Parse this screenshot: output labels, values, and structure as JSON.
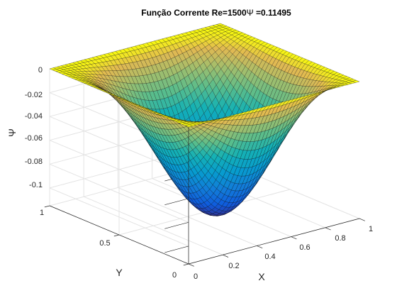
{
  "chart_data": {
    "type": "surface",
    "title": "Função Corrente Re=1500",
    "title_symbol": "Ψ",
    "title_value": " =0.11495",
    "xlabel": "X",
    "ylabel": "Y",
    "zlabel": "Ψ",
    "xlim": [
      0,
      1
    ],
    "ylim": [
      0,
      1
    ],
    "zlim": [
      -0.11495,
      0
    ],
    "x_ticks": [
      "0",
      "0.2",
      "0.4",
      "0.6",
      "0.8",
      "1"
    ],
    "y_ticks": [
      "0",
      "0.5",
      "1"
    ],
    "z_ticks": [
      "0",
      "-0.02",
      "-0.04",
      "-0.06",
      "-0.08",
      "-0.1"
    ],
    "z_tick_values": [
      0,
      -0.02,
      -0.04,
      -0.06,
      -0.08,
      -0.1
    ],
    "psi_min": -0.11495,
    "colormap": "parula",
    "grid": true
  }
}
